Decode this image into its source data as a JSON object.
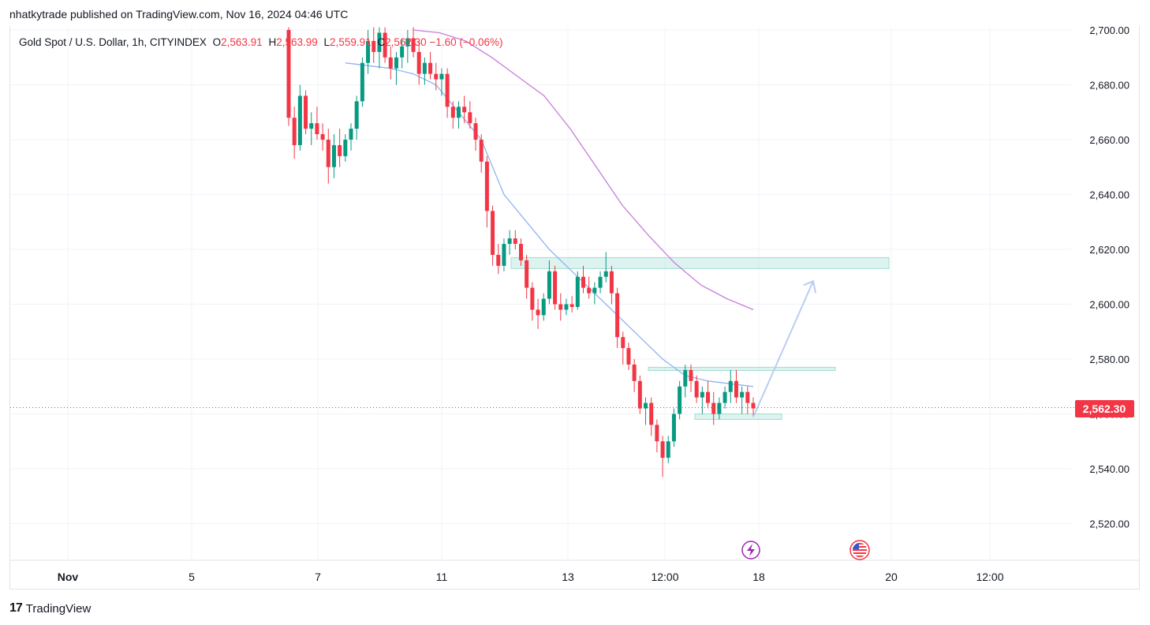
{
  "header": {
    "publish_line": "nhatkytrade published on TradingView.com, Nov 16, 2024 04:46 UTC"
  },
  "legend": {
    "symbol": "Gold Spot / U.S. Dollar, 1h, CITYINDEX",
    "o_label": "O",
    "o_value": "2,563.91",
    "h_label": "H",
    "h_value": "2,563.99",
    "l_label": "L",
    "l_value": "2,559.91",
    "c_label": "C",
    "c_value": "2,562.30",
    "change": "−1.60 (−0.06%)"
  },
  "footer": {
    "brand": "TradingView",
    "logo_glyph": "17"
  },
  "colors": {
    "up": "#089981",
    "down": "#f23645",
    "ema_fast": "#90b4f0",
    "ema_slow": "#c77dd9",
    "zone": "#bfe9e2",
    "arrow": "#b9cdf3"
  },
  "chart_data": {
    "type": "candlestick",
    "ylim": [
      2505,
      2701
    ],
    "y_ticks": [
      "2,700.00",
      "2,680.00",
      "2,660.00",
      "2,640.00",
      "2,620.00",
      "2,600.00",
      "2,580.00",
      "2,560.00",
      "2,540.00",
      "2,520.00"
    ],
    "y_tick_values": [
      2700,
      2680,
      2660,
      2640,
      2620,
      2600,
      2580,
      2560,
      2540,
      2520
    ],
    "x_ticks": [
      {
        "label": "Nov",
        "bold": true
      },
      {
        "label": "5"
      },
      {
        "label": "7"
      },
      {
        "label": "11"
      },
      {
        "label": "13"
      },
      {
        "label": "12:00"
      },
      {
        "label": "18"
      },
      {
        "label": "20"
      },
      {
        "label": "12:00"
      }
    ],
    "last_price": 2562.3,
    "last_price_label": "2,562.30",
    "ohlc": [
      [
        2700,
        2701,
        2665,
        2668
      ],
      [
        2668,
        2672,
        2653,
        2658
      ],
      [
        2658,
        2680,
        2656,
        2676
      ],
      [
        2676,
        2678,
        2662,
        2664
      ],
      [
        2664,
        2670,
        2658,
        2666
      ],
      [
        2666,
        2672,
        2660,
        2662
      ],
      [
        2662,
        2666,
        2656,
        2660
      ],
      [
        2660,
        2664,
        2644,
        2650
      ],
      [
        2650,
        2662,
        2646,
        2658
      ],
      [
        2658,
        2664,
        2650,
        2654
      ],
      [
        2654,
        2662,
        2652,
        2660
      ],
      [
        2660,
        2666,
        2656,
        2664
      ],
      [
        2664,
        2676,
        2660,
        2674
      ],
      [
        2674,
        2690,
        2672,
        2688
      ],
      [
        2688,
        2700,
        2684,
        2696
      ],
      [
        2696,
        2701,
        2688,
        2692
      ],
      [
        2692,
        2701,
        2686,
        2699
      ],
      [
        2699,
        2701,
        2688,
        2690
      ],
      [
        2690,
        2694,
        2682,
        2686
      ],
      [
        2686,
        2692,
        2680,
        2690
      ],
      [
        2690,
        2697,
        2686,
        2694
      ],
      [
        2694,
        2700,
        2688,
        2697
      ],
      [
        2697,
        2701,
        2690,
        2692
      ],
      [
        2692,
        2696,
        2680,
        2684
      ],
      [
        2684,
        2690,
        2680,
        2688
      ],
      [
        2688,
        2692,
        2682,
        2684
      ],
      [
        2684,
        2688,
        2678,
        2682
      ],
      [
        2682,
        2686,
        2676,
        2684
      ],
      [
        2684,
        2686,
        2668,
        2672
      ],
      [
        2672,
        2674,
        2664,
        2668
      ],
      [
        2668,
        2674,
        2664,
        2672
      ],
      [
        2672,
        2676,
        2666,
        2670
      ],
      [
        2670,
        2674,
        2664,
        2666
      ],
      [
        2666,
        2668,
        2656,
        2660
      ],
      [
        2660,
        2662,
        2648,
        2652
      ],
      [
        2652,
        2654,
        2628,
        2634
      ],
      [
        2634,
        2636,
        2614,
        2618
      ],
      [
        2618,
        2622,
        2611,
        2614
      ],
      [
        2614,
        2624,
        2612,
        2622
      ],
      [
        2622,
        2627,
        2618,
        2624
      ],
      [
        2624,
        2627,
        2620,
        2622
      ],
      [
        2622,
        2624,
        2614,
        2616
      ],
      [
        2616,
        2618,
        2602,
        2606
      ],
      [
        2606,
        2608,
        2594,
        2598
      ],
      [
        2598,
        2602,
        2591,
        2596
      ],
      [
        2596,
        2604,
        2594,
        2602
      ],
      [
        2602,
        2616,
        2600,
        2612
      ],
      [
        2612,
        2614,
        2598,
        2600
      ],
      [
        2600,
        2604,
        2594,
        2598
      ],
      [
        2598,
        2602,
        2596,
        2600
      ],
      [
        2600,
        2603,
        2597,
        2599
      ],
      [
        2599,
        2612,
        2598,
        2610
      ],
      [
        2610,
        2614,
        2604,
        2606
      ],
      [
        2606,
        2610,
        2602,
        2604
      ],
      [
        2604,
        2608,
        2600,
        2606
      ],
      [
        2606,
        2612,
        2604,
        2610
      ],
      [
        2610,
        2619,
        2608,
        2612
      ],
      [
        2612,
        2614,
        2600,
        2604
      ],
      [
        2604,
        2606,
        2584,
        2588
      ],
      [
        2588,
        2590,
        2578,
        2584
      ],
      [
        2584,
        2586,
        2576,
        2578
      ],
      [
        2578,
        2580,
        2568,
        2572
      ],
      [
        2572,
        2574,
        2560,
        2562
      ],
      [
        2562,
        2566,
        2556,
        2564
      ],
      [
        2564,
        2566,
        2552,
        2556
      ],
      [
        2556,
        2558,
        2546,
        2550
      ],
      [
        2550,
        2552,
        2537,
        2544
      ],
      [
        2544,
        2552,
        2542,
        2550
      ],
      [
        2550,
        2562,
        2548,
        2560
      ],
      [
        2560,
        2572,
        2558,
        2570
      ],
      [
        2570,
        2578,
        2566,
        2576
      ],
      [
        2576,
        2578,
        2568,
        2572
      ],
      [
        2572,
        2574,
        2564,
        2566
      ],
      [
        2566,
        2570,
        2560,
        2568
      ],
      [
        2568,
        2572,
        2562,
        2564
      ],
      [
        2564,
        2568,
        2556,
        2560
      ],
      [
        2560,
        2566,
        2558,
        2564
      ],
      [
        2564,
        2570,
        2562,
        2568
      ],
      [
        2568,
        2576,
        2564,
        2572
      ],
      [
        2572,
        2576,
        2564,
        2566
      ],
      [
        2566,
        2570,
        2560,
        2568
      ],
      [
        2568,
        2570,
        2560,
        2564
      ],
      [
        2564,
        2566,
        2559,
        2562
      ]
    ],
    "ema_fast": [
      [
        2690,
        2688
      ],
      [
        2682,
        2687
      ],
      [
        2667,
        2686
      ],
      [
        2645,
        2684
      ],
      [
        2630,
        2680
      ],
      [
        2620,
        2670
      ],
      [
        2612,
        2660
      ],
      [
        2607,
        2640
      ],
      [
        2604,
        2630
      ],
      [
        2600,
        2620
      ],
      [
        2597,
        2612
      ],
      [
        2592,
        2604
      ],
      [
        2587,
        2596
      ],
      [
        2582,
        2588
      ],
      [
        2577,
        2580
      ],
      [
        2572,
        2574
      ],
      [
        2568,
        2572
      ],
      [
        2565,
        2571
      ],
      [
        2563,
        2570
      ]
    ],
    "ema_slow": [
      [
        2690,
        2700
      ],
      [
        2683,
        2699
      ],
      [
        2675,
        2696
      ],
      [
        2660,
        2690
      ],
      [
        2645,
        2683
      ],
      [
        2635,
        2676
      ],
      [
        2625,
        2664
      ],
      [
        2618,
        2650
      ],
      [
        2612,
        2636
      ],
      [
        2607,
        2625
      ],
      [
        2602,
        2615
      ],
      [
        2597,
        2607
      ],
      [
        2592,
        2602
      ],
      [
        2588,
        2598
      ]
    ],
    "zones": [
      {
        "y_top": 2617,
        "y_bottom": 2613
      },
      {
        "y_top": 2577,
        "y_bottom": 2576
      },
      {
        "y_top": 2560,
        "y_bottom": 2558
      }
    ],
    "projection": {
      "from_price": 2560,
      "to_price": 2613
    }
  }
}
